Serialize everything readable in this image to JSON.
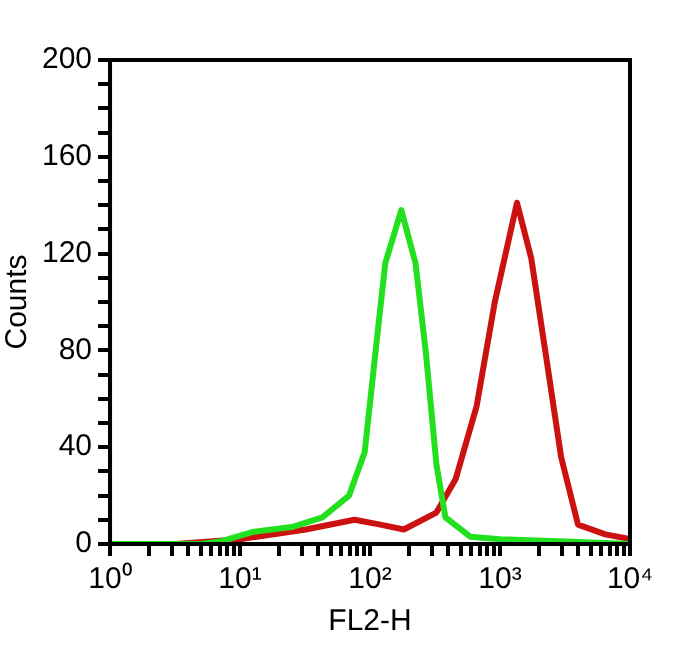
{
  "chart_data": {
    "type": "line",
    "xlabel": "FL2-H",
    "ylabel": "Counts",
    "log": "x",
    "grid": false,
    "legend": false,
    "marker": "none",
    "line_style": "solid",
    "xlim": [
      1,
      10000
    ],
    "xticks": [
      {
        "value": 1,
        "label": "10⁰"
      },
      {
        "value": 2,
        "label": null
      },
      {
        "value": 3,
        "label": null
      },
      {
        "value": 4,
        "label": null
      },
      {
        "value": 5,
        "label": null
      },
      {
        "value": 6,
        "label": null
      },
      {
        "value": 7,
        "label": null
      },
      {
        "value": 8,
        "label": null
      },
      {
        "value": 9,
        "label": null
      },
      {
        "value": 10,
        "label": "10¹"
      },
      {
        "value": 20,
        "label": null
      },
      {
        "value": 30,
        "label": null
      },
      {
        "value": 40,
        "label": null
      },
      {
        "value": 50,
        "label": null
      },
      {
        "value": 60,
        "label": null
      },
      {
        "value": 70,
        "label": null
      },
      {
        "value": 80,
        "label": null
      },
      {
        "value": 90,
        "label": null
      },
      {
        "value": 100,
        "label": "10²"
      },
      {
        "value": 200,
        "label": null
      },
      {
        "value": 300,
        "label": null
      },
      {
        "value": 400,
        "label": null
      },
      {
        "value": 500,
        "label": null
      },
      {
        "value": 600,
        "label": null
      },
      {
        "value": 700,
        "label": null
      },
      {
        "value": 800,
        "label": null
      },
      {
        "value": 900,
        "label": null
      },
      {
        "value": 1000,
        "label": "10³"
      },
      {
        "value": 2000,
        "label": null
      },
      {
        "value": 3000,
        "label": null
      },
      {
        "value": 4000,
        "label": null
      },
      {
        "value": 5000,
        "label": null
      },
      {
        "value": 6000,
        "label": null
      },
      {
        "value": 7000,
        "label": null
      },
      {
        "value": 8000,
        "label": null
      },
      {
        "value": 9000,
        "label": null
      },
      {
        "value": 10000,
        "label": "10⁴"
      }
    ],
    "ylim": [
      0,
      200
    ],
    "yticks": [
      0,
      {
        "value": 10,
        "label": null
      },
      {
        "value": 20,
        "label": null
      },
      {
        "value": 30,
        "label": null
      },
      40,
      {
        "value": 50,
        "label": null
      },
      {
        "value": 60,
        "label": null
      },
      {
        "value": 70,
        "label": null
      },
      80,
      {
        "value": 90,
        "label": null
      },
      {
        "value": 100,
        "label": null
      },
      {
        "value": 110,
        "label": null
      },
      120,
      {
        "value": 130,
        "label": null
      },
      {
        "value": 140,
        "label": null
      },
      {
        "value": 150,
        "label": null
      },
      160,
      {
        "value": 170,
        "label": null
      },
      {
        "value": 180,
        "label": null
      },
      {
        "value": 190,
        "label": null
      },
      200
    ],
    "series": [
      {
        "color": "#22e01e",
        "x": [
          1,
          5,
          7,
          12.6,
          25,
          43,
          69,
          91,
          110,
          131,
          174,
          224,
          269,
          324,
          380,
          590,
          1000,
          3200,
          10000
        ],
        "values": [
          0,
          0,
          1,
          5,
          7,
          11,
          20,
          38,
          79,
          116,
          138,
          116,
          79,
          33,
          11,
          3,
          2,
          1,
          0
        ]
      },
      {
        "color": "#cc1111",
        "x": [
          1,
          3.2,
          10,
          32,
          76,
          120,
          182,
          324,
          457,
          661,
          912,
          1350,
          1740,
          2240,
          2950,
          3980,
          6460,
          10000
        ],
        "values": [
          0,
          0,
          2,
          6,
          10,
          8,
          6,
          13,
          27,
          57,
          100,
          141,
          118,
          79,
          36,
          8,
          4,
          2
        ]
      }
    ]
  }
}
